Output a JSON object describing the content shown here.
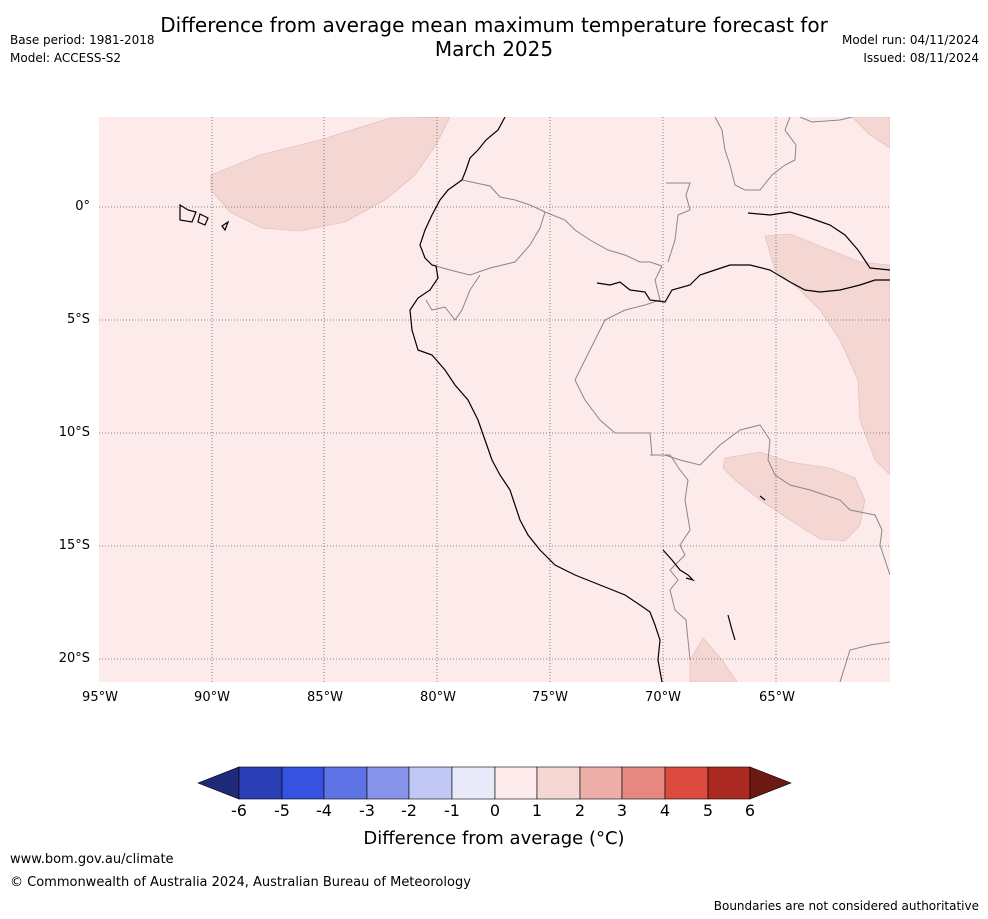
{
  "title_line1": "Difference from average mean maximum temperature forecast for",
  "title_line2": "March 2025",
  "meta_left": {
    "base_period": "Base period: 1981-2018",
    "model": "Model: ACCESS-S2"
  },
  "meta_right": {
    "model_run": "Model run: 04/11/2024",
    "issued": "Issued: 08/11/2024"
  },
  "lat_labels": [
    "0°",
    "5°S",
    "10°S",
    "15°S",
    "20°S"
  ],
  "lon_labels": [
    "95°W",
    "90°W",
    "85°W",
    "80°W",
    "75°W",
    "70°W",
    "65°W"
  ],
  "colorbar": {
    "ticks": [
      "-6",
      "-5",
      "-4",
      "-3",
      "-2",
      "-1",
      "0",
      "1",
      "2",
      "3",
      "4",
      "5",
      "6"
    ],
    "title": "Difference from average (°C)",
    "colors": [
      "#1f2a7a",
      "#2a3eb5",
      "#3652e0",
      "#5e74e6",
      "#8695ea",
      "#c2c8f4",
      "#e8eaf9",
      "#fcebea",
      "#f4d6d3",
      "#eeaea8",
      "#e68880",
      "#dc4b40",
      "#ad2a22",
      "#6e1a14"
    ]
  },
  "footer": {
    "website": "www.bom.gov.au/climate",
    "copyright": "© Commonwealth of Australia 2024, Australian Bureau of Meteorology",
    "disclaimer": "Boundaries are not considered authoritative"
  },
  "map": {
    "background_color": "#fcebea",
    "anomaly_patch_color": "#f4d6d3",
    "coast_color": "#000000",
    "border_color": "#888888"
  }
}
